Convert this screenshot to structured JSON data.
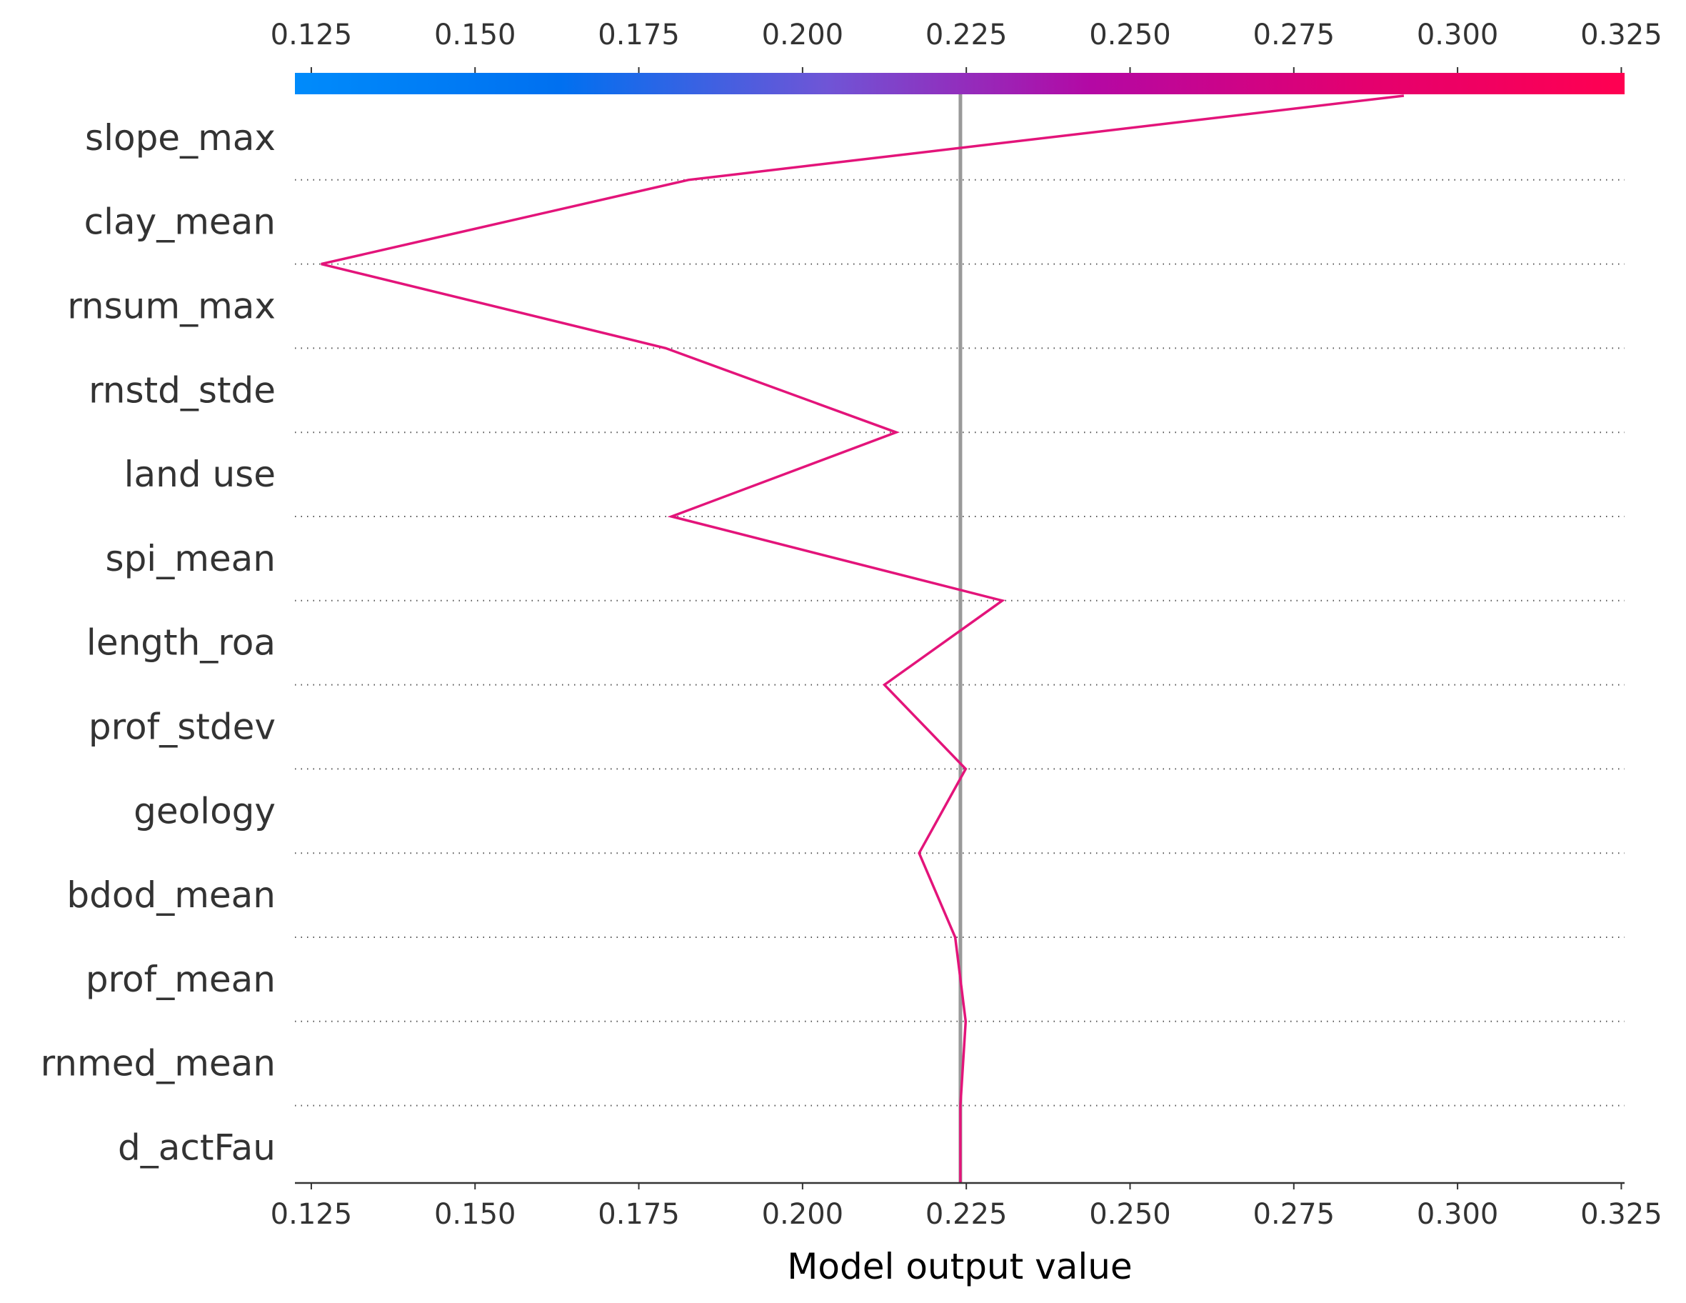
{
  "chart_data": {
    "type": "line",
    "title": "",
    "xlabel": "Model output value",
    "ylabel": "",
    "xlim": [
      0.1225,
      0.3255
    ],
    "x_ticks": [
      "0.125",
      "0.150",
      "0.175",
      "0.200",
      "0.225",
      "0.250",
      "0.275",
      "0.300",
      "0.325"
    ],
    "x_tick_values": [
      0.125,
      0.15,
      0.175,
      0.2,
      0.225,
      0.25,
      0.275,
      0.3,
      0.325
    ],
    "base_value": 0.2241,
    "features": [
      "slope_max",
      "clay_mean",
      "rnsum_max",
      "rnstd_stde",
      "land use",
      "spi_mean",
      "length_roa",
      "prof_stdev",
      "geology",
      "bdod_mean",
      "prof_mean",
      "rnmed_mean",
      "d_actFau"
    ],
    "series": [
      {
        "values": [
          0.2918,
          0.1826,
          0.1265,
          0.1791,
          0.2143,
          0.18,
          0.2305,
          0.2125,
          0.2249,
          0.2178,
          0.2233,
          0.2249,
          0.2241
        ]
      }
    ],
    "colorbar": {
      "range": [
        0.1225,
        0.3255
      ],
      "colors": [
        "#008bfb",
        "#0070f0",
        "#6f55d6",
        "#b408a4",
        "#e3006f",
        "#ff0051"
      ]
    },
    "line_color": "#e3147a",
    "base_line_color": "#999999",
    "grid": "dotted horizontal"
  }
}
